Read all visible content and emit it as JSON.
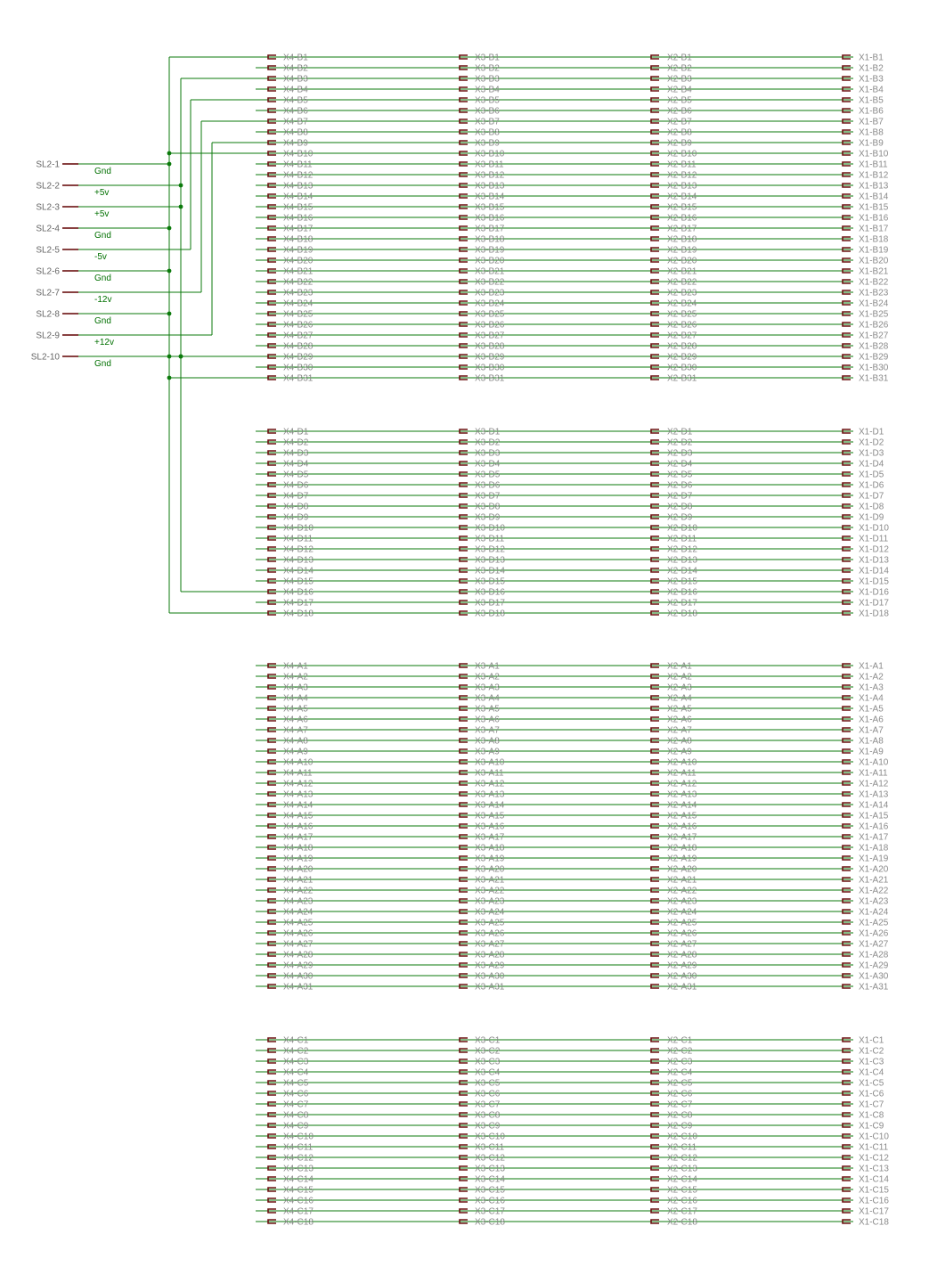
{
  "colors": {
    "wire": "#0b7a0b",
    "pin_stub": "#6b1010",
    "pin_label": "#8a8a8a",
    "net_label": "#007000",
    "background": "#ffffff"
  },
  "connectors": [
    "X4",
    "X3",
    "X2",
    "X1"
  ],
  "banks": [
    {
      "row": "B",
      "count": 31,
      "x1_count": 31
    },
    {
      "row": "D",
      "count": 18,
      "x1_count": 18
    },
    {
      "row": "A",
      "count": 31,
      "x1_count": 31
    },
    {
      "row": "C",
      "count": 18,
      "x1_count": 18
    }
  ],
  "sl2_header": {
    "pins": [
      {
        "label": "SL2-1",
        "net": "Gnd"
      },
      {
        "label": "SL2-2",
        "net": "+5v"
      },
      {
        "label": "SL2-3",
        "net": "+5v"
      },
      {
        "label": "SL2-4",
        "net": "Gnd"
      },
      {
        "label": "SL2-5",
        "net": "-5v"
      },
      {
        "label": "SL2-6",
        "net": "Gnd"
      },
      {
        "label": "SL2-7",
        "net": "-12v"
      },
      {
        "label": "SL2-8",
        "net": "Gnd"
      },
      {
        "label": "SL2-9",
        "net": "+12v"
      },
      {
        "label": "SL2-10",
        "net": "Gnd"
      }
    ]
  },
  "power_connections": [
    {
      "sl2_pin": "SL2-1",
      "bus_pins": [
        "B1",
        "B10",
        "B31",
        "D18"
      ]
    },
    {
      "sl2_pin": "SL2-2",
      "bus_pins": [
        "B3",
        "B29",
        "D16"
      ]
    },
    {
      "sl2_pin": "SL2-5",
      "bus_pins": [
        "B5"
      ]
    },
    {
      "sl2_pin": "SL2-7",
      "bus_pins": [
        "B7"
      ]
    },
    {
      "sl2_pin": "SL2-9",
      "bus_pins": [
        "B9"
      ]
    }
  ]
}
